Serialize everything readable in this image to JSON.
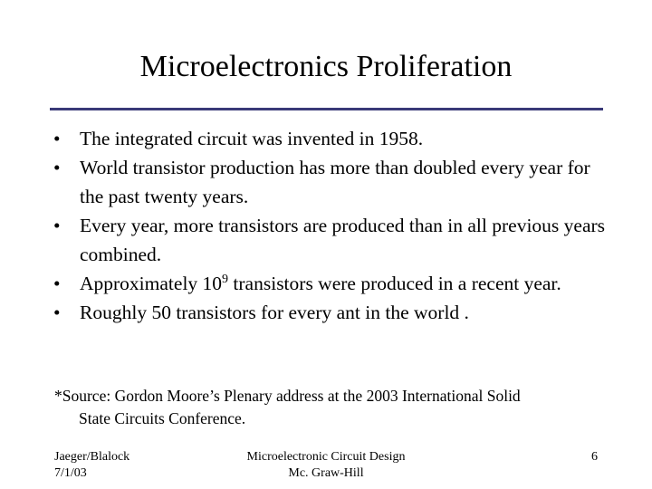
{
  "title": "Microelectronics Proliferation",
  "bullets": [
    {
      "text": "The integrated circuit was invented in 1958."
    },
    {
      "text": "World transistor production has more than doubled every year for the past twenty years."
    },
    {
      "text": "Every year, more transistors are produced than in all previous years combined."
    },
    {
      "pre": "Approximately 10",
      "sup": "9",
      "post": " transistors were produced in a recent year."
    },
    {
      "text": "Roughly  50 transistors for every ant in the world ."
    }
  ],
  "bullet_symbol": "•",
  "source": {
    "line1": "*Source: Gordon Moore’s Plenary address at the 2003 International Solid",
    "line2": "State Circuits Conference."
  },
  "footer": {
    "left_line1": "Jaeger/Blalock",
    "left_line2": "7/1/03",
    "center_line1": "Microelectronic Circuit Design",
    "center_line2": "Mc. Graw-Hill",
    "page_number": "6"
  },
  "colors": {
    "rule": "#3a3a78",
    "text": "#000000",
    "background": "#ffffff"
  }
}
